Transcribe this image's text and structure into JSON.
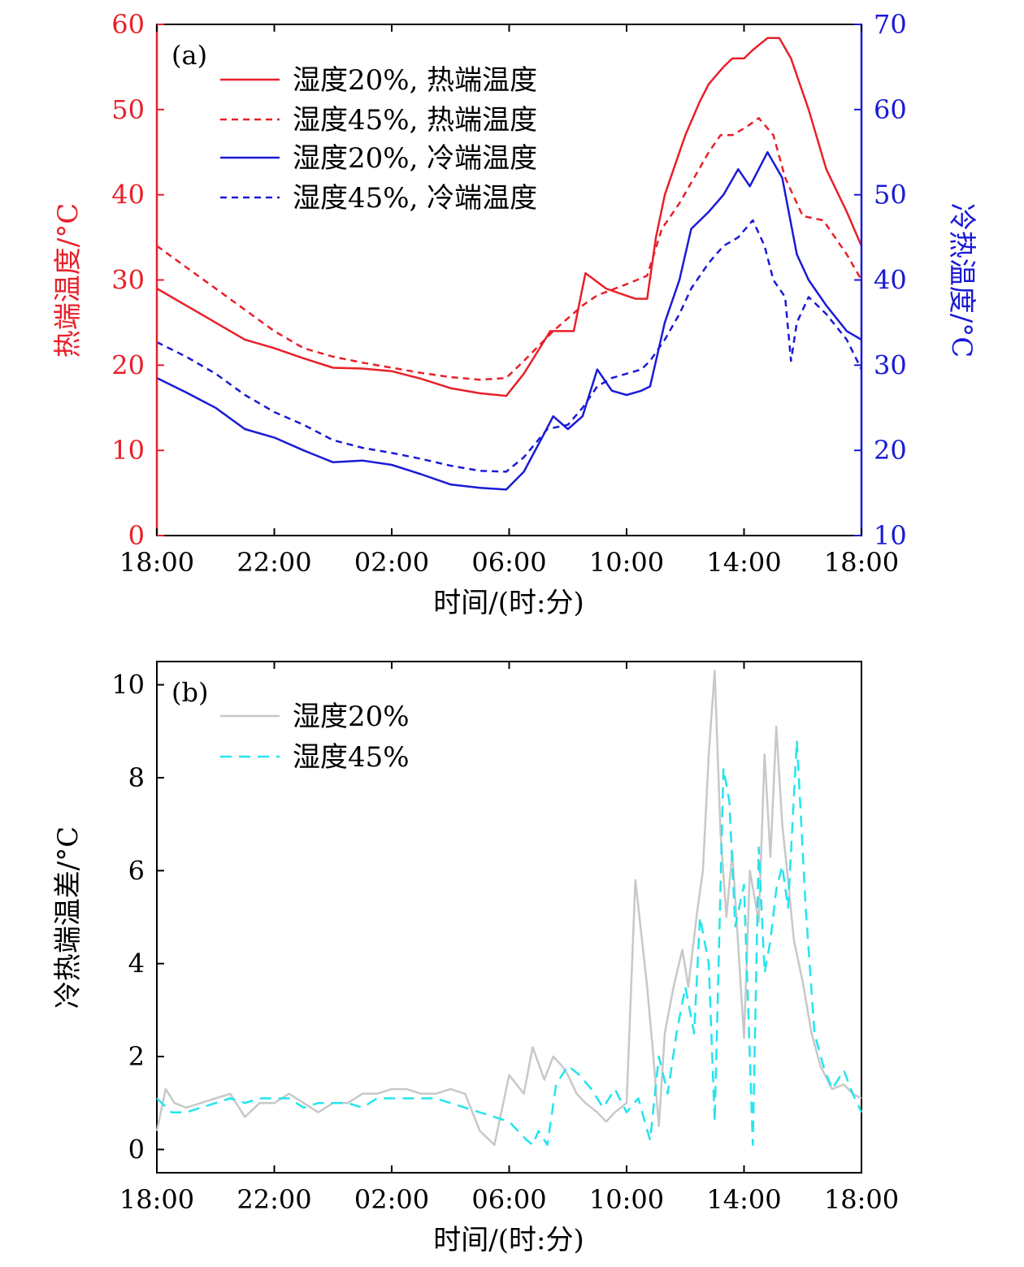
{
  "colors": {
    "hot": "#e8202a",
    "cold": "#1a1ad6",
    "diff20": "#c8c8c8",
    "diff45": "#22e5ee",
    "axis": "#000000"
  },
  "chart_data": [
    {
      "type": "line",
      "panel_label": "(a)",
      "xlabel": "时间/(时:分)",
      "x_ticks": [
        "18:00",
        "22:00",
        "02:00",
        "06:00",
        "10:00",
        "14:00",
        "18:00"
      ],
      "xlim_hours": [
        0,
        24
      ],
      "ylabel_left": "热端温度/°C",
      "ylim_left": [
        0,
        60
      ],
      "yticks_left": [
        "0",
        "10",
        "20",
        "30",
        "40",
        "50",
        "60"
      ],
      "ylabel_right": "冷热温度/°C",
      "ylim_right": [
        10,
        70
      ],
      "yticks_right": [
        "10",
        "20",
        "30",
        "40",
        "50",
        "60",
        "70"
      ],
      "legend_position": "top-left",
      "series": [
        {
          "name": "湿度20%, 热端温度",
          "axis": "left",
          "style": "solid",
          "color": "#e8202a",
          "x": [
            0,
            1,
            2,
            3,
            4,
            5,
            6,
            7,
            8,
            9,
            10,
            11,
            11.9,
            12.5,
            13.4,
            14.2,
            14.6,
            15.3,
            15.7,
            16.3,
            16.7,
            17,
            17.3,
            17.8,
            18,
            18.5,
            18.8,
            19.3,
            19.6,
            20,
            20.3,
            20.8,
            21.2,
            21.6,
            22.2,
            22.8,
            23.5,
            24
          ],
          "y": [
            29,
            27,
            25,
            23,
            22,
            20.8,
            19.7,
            19.6,
            19.3,
            18.4,
            17.3,
            16.7,
            16.4,
            19,
            24,
            24,
            30.8,
            29,
            28.5,
            27.8,
            27.8,
            35,
            40,
            45,
            47,
            51,
            53,
            55,
            56,
            56,
            57,
            58.4,
            58.4,
            56,
            50,
            43,
            38,
            34
          ]
        },
        {
          "name": "湿度45%, 热端温度",
          "axis": "left",
          "style": "dashed",
          "color": "#e8202a",
          "x": [
            0,
            1,
            2,
            3,
            4,
            5,
            6,
            7,
            8,
            9,
            10,
            11,
            11.9,
            12.5,
            13.5,
            14.5,
            15,
            16,
            16.7,
            17.2,
            17.8,
            18.3,
            18.8,
            19.2,
            19.6,
            20.1,
            20.5,
            21,
            21.4,
            22,
            22.7,
            23.5,
            24
          ],
          "y": [
            34,
            31.5,
            29,
            26.5,
            24,
            22,
            21,
            20.3,
            19.7,
            19.1,
            18.6,
            18.3,
            18.5,
            20.5,
            24,
            27,
            28.2,
            29.5,
            30.5,
            36,
            39,
            42,
            45,
            47,
            47,
            48,
            49,
            47,
            42,
            37.5,
            37,
            33,
            30
          ]
        },
        {
          "name": "湿度20%, 冷端温度",
          "axis": "right",
          "style": "solid",
          "color": "#1a1ad6",
          "x": [
            0,
            1,
            2,
            3,
            4,
            5,
            6,
            7,
            8,
            9,
            10,
            11,
            11.9,
            12.5,
            13.2,
            13.5,
            14,
            14.5,
            15,
            15.5,
            16,
            16.5,
            16.8,
            17.3,
            17.8,
            18.2,
            18.8,
            19.3,
            19.8,
            20.2,
            20.8,
            21.3,
            21.8,
            22.2,
            22.8,
            23.5,
            24
          ],
          "y": [
            28.5,
            26.8,
            25,
            22.5,
            21.5,
            20,
            18.6,
            18.8,
            18.3,
            17.2,
            16,
            15.6,
            15.4,
            17.5,
            22,
            24,
            22.5,
            24,
            29.5,
            27,
            26.5,
            27,
            27.5,
            35,
            40,
            46,
            48,
            50,
            53,
            51,
            55,
            52,
            43,
            40,
            37,
            34,
            33
          ]
        },
        {
          "name": "湿度45%, 冷端温度",
          "axis": "right",
          "style": "dashed",
          "color": "#1a1ad6",
          "x": [
            0,
            1,
            2,
            3,
            4,
            5,
            6,
            7,
            8,
            9,
            10,
            11,
            11.9,
            12.5,
            13.3,
            14,
            14.5,
            15,
            15.5,
            16,
            16.5,
            16.8,
            17.3,
            17.8,
            18.2,
            18.8,
            19.3,
            19.8,
            20.3,
            20.7,
            21,
            21.4,
            21.6,
            21.8,
            22.2,
            22.8,
            23.5,
            24
          ],
          "y": [
            32.7,
            31,
            29,
            26.5,
            24.5,
            23,
            21.2,
            20.3,
            19.7,
            19,
            18.2,
            17.6,
            17.5,
            19.2,
            22.5,
            23,
            25,
            27.5,
            28.5,
            29,
            29.5,
            30.5,
            33,
            36,
            39,
            42,
            44,
            45,
            47,
            44,
            40,
            38,
            30.5,
            35,
            38,
            36,
            33,
            29.5
          ]
        }
      ]
    },
    {
      "type": "line",
      "panel_label": "(b)",
      "xlabel": "时间/(时:分)",
      "x_ticks": [
        "18:00",
        "22:00",
        "02:00",
        "06:00",
        "10:00",
        "14:00",
        "18:00"
      ],
      "xlim_hours": [
        0,
        24
      ],
      "ylabel": "冷热端温差/°C",
      "ylim": [
        -0.5,
        10.5
      ],
      "yticks": [
        "0",
        "2",
        "4",
        "6",
        "8",
        "10"
      ],
      "legend_position": "top-left",
      "series": [
        {
          "name": "湿度20%",
          "style": "solid",
          "color": "#c8c8c8",
          "x": [
            0,
            0.3,
            0.6,
            1,
            1.5,
            2,
            2.5,
            3,
            3.5,
            4,
            4.5,
            5,
            5.5,
            6,
            6.5,
            7,
            7.5,
            8,
            8.5,
            9,
            9.5,
            10,
            10.5,
            11,
            11.5,
            12,
            12.5,
            12.8,
            13.2,
            13.5,
            13.8,
            14,
            14.3,
            14.6,
            15,
            15.3,
            15.6,
            16,
            16.3,
            16.7,
            16.9,
            17.1,
            17.3,
            17.6,
            17.9,
            18.1,
            18.4,
            18.6,
            18.8,
            19,
            19.2,
            19.4,
            19.6,
            19.8,
            20,
            20.2,
            20.5,
            20.7,
            20.9,
            21.1,
            21.3,
            21.5,
            21.7,
            22,
            22.3,
            22.6,
            23,
            23.4,
            23.7,
            24
          ],
          "y": [
            0.4,
            1.3,
            1,
            0.9,
            1,
            1.1,
            1.2,
            0.7,
            1,
            1,
            1.2,
            1,
            0.8,
            1,
            1,
            1.2,
            1.2,
            1.3,
            1.3,
            1.2,
            1.2,
            1.3,
            1.2,
            0.4,
            0.1,
            1.6,
            1.2,
            2.2,
            1.5,
            2,
            1.8,
            1.6,
            1.2,
            1,
            0.8,
            0.6,
            0.8,
            1,
            5.8,
            3.5,
            2.1,
            0.5,
            2.5,
            3.5,
            4.3,
            3.5,
            5.1,
            6,
            8.5,
            10.3,
            6.8,
            5,
            6.4,
            4.4,
            2.4,
            6,
            4.9,
            8.5,
            6.3,
            9.1,
            7,
            5.8,
            4.5,
            3.6,
            2.5,
            1.8,
            1.3,
            1.4,
            1.2,
            1.1
          ]
        },
        {
          "name": "湿度45%",
          "style": "dashed",
          "color": "#22e5ee",
          "x": [
            0,
            0.5,
            1,
            1.5,
            2,
            2.5,
            3,
            3.5,
            4,
            4.5,
            5,
            5.5,
            6,
            6.5,
            7,
            7.5,
            8,
            8.5,
            9,
            9.5,
            10,
            10.5,
            11,
            11.5,
            12,
            12.3,
            12.6,
            12.8,
            13,
            13.3,
            13.6,
            14,
            14.4,
            14.8,
            15.2,
            15.6,
            16,
            16.4,
            16.8,
            17.1,
            17.4,
            17.7,
            18,
            18.3,
            18.5,
            18.8,
            19,
            19.3,
            19.5,
            19.7,
            20,
            20.3,
            20.5,
            20.7,
            20.9,
            21.1,
            21.3,
            21.5,
            21.8,
            22.1,
            22.4,
            22.7,
            23,
            23.4,
            23.7,
            24
          ],
          "y": [
            1.1,
            0.8,
            0.8,
            0.9,
            1,
            1.1,
            1,
            1.1,
            1.1,
            1.1,
            0.9,
            1,
            1,
            1,
            0.9,
            1.1,
            1.1,
            1.1,
            1.1,
            1.1,
            1.0,
            0.9,
            0.8,
            0.7,
            0.6,
            0.4,
            0.2,
            0.1,
            0.4,
            0.1,
            1.4,
            1.8,
            1.6,
            1.3,
            0.9,
            1.3,
            0.8,
            1.1,
            0.2,
            2,
            1.2,
            2.5,
            3.5,
            2.5,
            5,
            4,
            0.6,
            8.2,
            7.5,
            4.8,
            5.7,
            0.1,
            6.5,
            3.8,
            4.5,
            5.6,
            6.1,
            5.2,
            8.8,
            5.2,
            2.5,
            1.8,
            1.3,
            1.7,
            1.2,
            0.8
          ]
        }
      ]
    }
  ]
}
